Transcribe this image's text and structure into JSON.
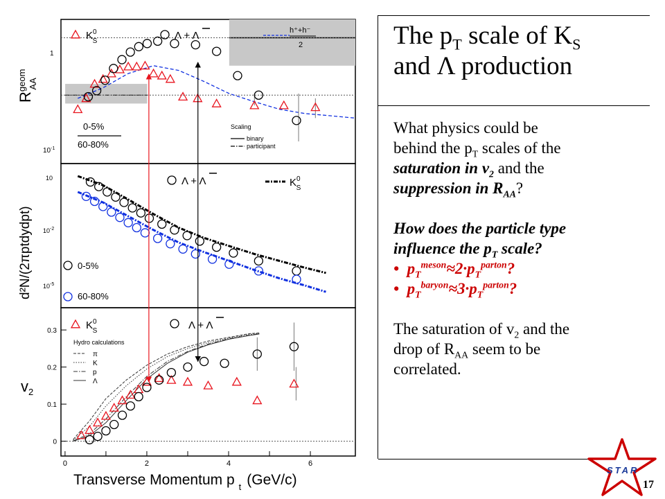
{
  "slide": {
    "title_line1": {
      "a": "The p",
      "b": "T",
      "c": " scale of K",
      "d": "S"
    },
    "title_line2": {
      "a": "and ",
      "b": "Λ",
      "c": " production"
    },
    "question1": {
      "l1": "What physics could be",
      "l2a": "behind the p",
      "l2b": "T",
      "l2c": " scales of the",
      "l3a": "saturation in v",
      "l3b": "2",
      "l3c": " and the",
      "l4a": "suppression in R",
      "l4b": "AA",
      "l4c": "?"
    },
    "question2": {
      "l1": "How does the particle type",
      "l2a": "influence the p",
      "l2b": "T",
      "l2c": " scale?"
    },
    "bullets": [
      {
        "a": "p",
        "b": "T",
        "c": "meson",
        "d": "≈2·p",
        "e": "T",
        "f": "parton",
        "g": "?"
      },
      {
        "a": "p",
        "b": "T",
        "c": "baryon",
        "d": "≈3·p",
        "e": "T",
        "f": "parton",
        "g": "?"
      }
    ],
    "conclusion": {
      "l1a": "The saturation of v",
      "l1b": "2",
      "l1c": " and the",
      "l2a": "drop of R",
      "l2b": "AA",
      "l2c": " seem to be",
      "l3": "correlated."
    },
    "page_number": "17",
    "logo_text": "STAR"
  },
  "colors": {
    "ks0": "#e8141e",
    "lambda": "#000000",
    "blue": "#1030e0",
    "band": "#c8c8c8"
  },
  "chart_data": [
    {
      "type": "scatter",
      "panel": "top",
      "ylabel_main": "R",
      "ylabel_sup": "geom",
      "ylabel_sub": "AA",
      "xlim": [
        0,
        7
      ],
      "ylim": [
        0.1,
        1.4
      ],
      "log_y": true,
      "ytick_labels": [
        "1",
        "10",
        "-1"
      ],
      "legend": {
        "ks0": "K",
        "ks0_sub": "S",
        "ks0_sup": "0",
        "lambda": "Λ + Λ"
      },
      "band_legend": {
        "num": "h⁺+h⁻",
        "den": "2"
      },
      "centrality_legend": [
        "0-5%",
        "60-80%"
      ],
      "scaling_legend": {
        "title": "Scaling",
        "binary": "binary",
        "participant": "participant"
      },
      "series": [
        {
          "name": "K",
          "marker": "triangle",
          "color": "#e8141e",
          "x": [
            0.4,
            0.6,
            0.8,
            1.0,
            1.2,
            1.4,
            1.6,
            1.8,
            2.0,
            2.2,
            2.4,
            2.6,
            2.9,
            3.25,
            3.7,
            4.6,
            5.3,
            6.05
          ],
          "y": [
            0.27,
            0.33,
            0.43,
            0.47,
            0.52,
            0.56,
            0.59,
            0.59,
            0.6,
            0.52,
            0.5,
            0.47,
            0.34,
            0.33,
            0.3,
            0.29,
            0.29,
            0.28
          ]
        },
        {
          "name": "Λ + Λ",
          "marker": "circle",
          "color": "#000000",
          "x": [
            0.65,
            0.85,
            1.05,
            1.25,
            1.45,
            1.65,
            1.85,
            2.05,
            2.3,
            2.7,
            3.2,
            3.7,
            4.2,
            4.7,
            5.6
          ],
          "y": [
            0.34,
            0.38,
            0.46,
            0.57,
            0.67,
            0.77,
            0.85,
            0.9,
            0.94,
            0.9,
            0.88,
            0.78,
            0.5,
            0.35,
            0.22
          ]
        }
      ],
      "bands": [
        {
          "x": [
            0.1,
            2.05
          ],
          "y": [
            0.3,
            0.43
          ],
          "central": 0.35
        },
        {
          "x": [
            4.0,
            7.0
          ],
          "y": [
            0.6,
            1.4
          ],
          "central": 1.0
        }
      ],
      "curve": {
        "x": [
          0.4,
          1.0,
          1.6,
          2.2,
          2.8,
          3.4,
          4.0,
          4.6,
          5.2,
          5.8,
          6.4,
          7.0
        ],
        "y": [
          0.33,
          0.4,
          0.52,
          0.6,
          0.55,
          0.45,
          0.36,
          0.31,
          0.27,
          0.25,
          0.24,
          0.23
        ]
      }
    },
    {
      "type": "scatter",
      "panel": "middle",
      "ylabel": "d²N/(2πptdydpt)",
      "xlim": [
        0,
        7
      ],
      "ylim": [
        0.0001,
        30
      ],
      "log_y": true,
      "ytick_labels": [
        "10",
        "10",
        "10"
      ],
      "ytick_exps": [
        "",
        "-2",
        "-5"
      ],
      "legend": {
        "lambda": "Λ + Λ",
        "ks0": "K",
        "ks0_sub": "S",
        "ks0_sup": "0"
      },
      "centrality_legend": [
        "0-5%",
        "60-80%"
      ],
      "series": [
        {
          "name": "Λ + Λ",
          "marker": "circle",
          "color": "#000000",
          "x": [
            0.7,
            0.9,
            1.1,
            1.3,
            1.5,
            1.7,
            1.9,
            2.1,
            2.4,
            2.7,
            3.0,
            3.3,
            3.7,
            4.1,
            4.7,
            5.6
          ],
          "y": [
            6.0,
            4.0,
            2.5,
            1.6,
            1.0,
            0.62,
            0.4,
            0.25,
            0.15,
            0.09,
            0.055,
            0.034,
            0.02,
            0.012,
            0.006,
            0.0025
          ]
        },
        {
          "name": "Λ + Λ",
          "marker": "circle",
          "color": "#1030e0",
          "x": [
            0.6,
            0.8,
            1.0,
            1.2,
            1.4,
            1.6,
            1.8,
            2.0,
            2.3,
            2.6,
            2.9,
            3.2,
            3.6,
            4.0,
            4.7,
            5.6
          ],
          "y": [
            1.7,
            1.1,
            0.7,
            0.43,
            0.27,
            0.17,
            0.11,
            0.07,
            0.043,
            0.027,
            0.017,
            0.011,
            0.007,
            0.0045,
            0.0025,
            0.0012
          ]
        },
        {
          "name": "K",
          "marker": "dash-dot",
          "color": "#000000",
          "x": [
            0.4,
            1.0,
            1.6,
            2.2,
            2.8,
            3.4,
            4.0,
            4.6,
            5.2,
            5.8,
            6.3
          ],
          "y": [
            10,
            4.5,
            1.3,
            0.36,
            0.11,
            0.045,
            0.022,
            0.011,
            0.006,
            0.0033,
            0.0021
          ]
        },
        {
          "name": "K",
          "marker": "dash-dot",
          "color": "#1030e0",
          "x": [
            0.4,
            1.0,
            1.6,
            2.2,
            2.8,
            3.4,
            4.0,
            4.6,
            5.2,
            5.8,
            6.3
          ],
          "y": [
            2.5,
            1.0,
            0.3,
            0.09,
            0.03,
            0.013,
            0.006,
            0.0027,
            0.0013,
            0.0007,
            0.0004
          ]
        }
      ]
    },
    {
      "type": "scatter",
      "panel": "bottom",
      "ylabel": "v",
      "ylabel_sub": "2",
      "xlabel": "Transverse Momentum p",
      "xlabel_sub": "t",
      "xlabel_unit": "(GeV/c)",
      "xlim": [
        -0.1,
        7.1
      ],
      "ylim": [
        -0.04,
        0.36
      ],
      "xticks": [
        0,
        1,
        2,
        3,
        4,
        5,
        6
      ],
      "xtick_labels": [
        "0",
        "2",
        "4",
        "6"
      ],
      "yticks": [
        0,
        0.1,
        0.2,
        0.3
      ],
      "ytick_labels": [
        "0",
        "0.1",
        "0.2",
        "0.3"
      ],
      "legend": {
        "ks0": "K",
        "ks0_sub": "S",
        "ks0_sup": "0",
        "lambda": "Λ + Λ"
      },
      "hydro_legend": {
        "title": "Hydro calculations",
        "items": [
          "π",
          "K",
          "p",
          "Λ"
        ]
      },
      "series": [
        {
          "name": "K",
          "marker": "triangle",
          "color": "#e8141e",
          "x": [
            0.4,
            0.6,
            0.8,
            1.0,
            1.2,
            1.4,
            1.6,
            1.8,
            2.0,
            2.3,
            2.6,
            3.0,
            3.5,
            4.2,
            4.7,
            5.6
          ],
          "y": [
            0.016,
            0.03,
            0.05,
            0.068,
            0.09,
            0.11,
            0.125,
            0.14,
            0.16,
            0.17,
            0.165,
            0.16,
            0.15,
            0.16,
            0.11,
            0.155
          ]
        },
        {
          "name": "Λ + Λ",
          "marker": "circle",
          "color": "#000000",
          "x": [
            0.6,
            0.8,
            1.0,
            1.2,
            1.4,
            1.6,
            1.8,
            2.0,
            2.3,
            2.6,
            3.0,
            3.4,
            3.9,
            4.7,
            5.6
          ],
          "y": [
            0.004,
            0.013,
            0.028,
            0.045,
            0.07,
            0.095,
            0.12,
            0.145,
            0.165,
            0.185,
            0.2,
            0.215,
            0.21,
            0.235,
            0.255
          ]
        }
      ],
      "hydro_curves": [
        {
          "name": "π",
          "x": [
            0.2,
            0.6,
            1.0,
            1.5,
            2.0,
            2.5,
            3.0,
            3.5,
            4.0,
            4.5,
            4.75
          ],
          "y": [
            0.005,
            0.055,
            0.115,
            0.165,
            0.205,
            0.235,
            0.255,
            0.27,
            0.28,
            0.29,
            0.292
          ]
        },
        {
          "name": "K",
          "x": [
            0.2,
            0.6,
            1.0,
            1.5,
            2.0,
            2.5,
            3.0,
            3.5,
            4.0,
            4.5,
            4.75
          ],
          "y": [
            0.003,
            0.04,
            0.095,
            0.15,
            0.195,
            0.228,
            0.25,
            0.266,
            0.278,
            0.288,
            0.291
          ]
        },
        {
          "name": "p",
          "x": [
            0.2,
            0.6,
            1.0,
            1.5,
            2.0,
            2.5,
            3.0,
            3.5,
            4.0,
            4.5,
            4.75
          ],
          "y": [
            0.001,
            0.02,
            0.06,
            0.12,
            0.175,
            0.215,
            0.242,
            0.262,
            0.276,
            0.286,
            0.29
          ]
        },
        {
          "name": "Λ",
          "x": [
            0.2,
            0.6,
            1.0,
            1.5,
            2.0,
            2.5,
            3.0,
            3.5,
            4.0,
            4.5,
            4.75
          ],
          "y": [
            0.0,
            0.015,
            0.05,
            0.11,
            0.168,
            0.21,
            0.24,
            0.26,
            0.275,
            0.285,
            0.289
          ]
        }
      ],
      "vertical_markers": [
        {
          "color": "#e8141e",
          "x": 2.05
        },
        {
          "color": "#000000",
          "x": 3.25
        }
      ]
    }
  ]
}
